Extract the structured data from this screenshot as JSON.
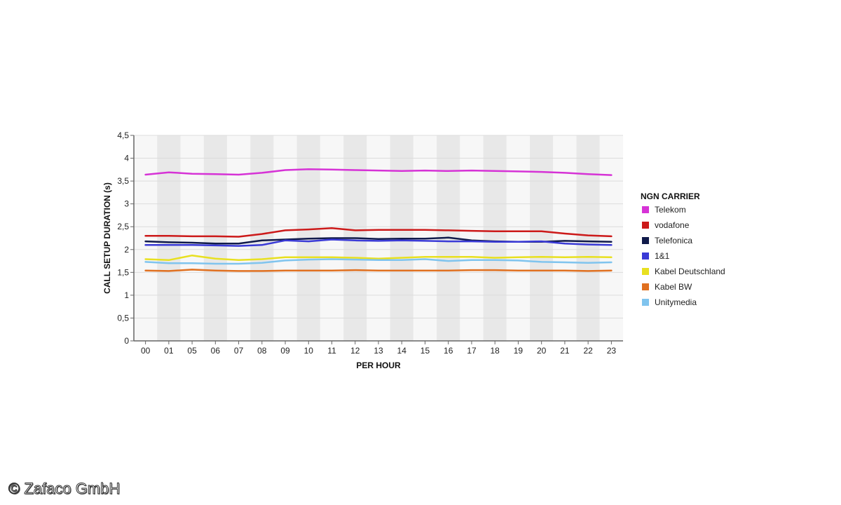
{
  "chart_data": {
    "type": "line",
    "title": "",
    "xlabel": "PER HOUR",
    "ylabel": "CALL SETUP DURATION (s)",
    "ylim": [
      0,
      4.5
    ],
    "yticks": [
      "0",
      "0,5",
      "1",
      "1,5",
      "2",
      "2,5",
      "3",
      "3,5",
      "4",
      "4,5"
    ],
    "grid": "alternating column bands",
    "legend_placement": "right",
    "legend_title": "NGN CARRIER",
    "categories": [
      "00",
      "01",
      "05",
      "06",
      "07",
      "08",
      "09",
      "10",
      "11",
      "12",
      "13",
      "14",
      "15",
      "16",
      "17",
      "18",
      "19",
      "20",
      "21",
      "22",
      "23"
    ],
    "series": [
      {
        "name": "Telekom",
        "color": "#d633d6",
        "values": [
          3.64,
          3.69,
          3.66,
          3.65,
          3.64,
          3.68,
          3.74,
          3.76,
          3.75,
          3.74,
          3.73,
          3.72,
          3.73,
          3.72,
          3.73,
          3.72,
          3.71,
          3.7,
          3.68,
          3.65,
          3.63
        ]
      },
      {
        "name": "vodafone",
        "color": "#cc1a1a",
        "values": [
          2.3,
          2.3,
          2.29,
          2.29,
          2.28,
          2.34,
          2.42,
          2.44,
          2.47,
          2.42,
          2.43,
          2.43,
          2.43,
          2.42,
          2.41,
          2.4,
          2.4,
          2.4,
          2.35,
          2.31,
          2.29
        ]
      },
      {
        "name": "Telefonica",
        "color": "#101a4a",
        "values": [
          2.18,
          2.16,
          2.15,
          2.13,
          2.13,
          2.2,
          2.22,
          2.24,
          2.25,
          2.25,
          2.23,
          2.24,
          2.24,
          2.26,
          2.2,
          2.18,
          2.17,
          2.17,
          2.19,
          2.18,
          2.17
        ]
      },
      {
        "name": "1&1",
        "color": "#3a3ad6",
        "values": [
          2.1,
          2.1,
          2.1,
          2.09,
          2.08,
          2.1,
          2.2,
          2.18,
          2.22,
          2.2,
          2.19,
          2.2,
          2.19,
          2.18,
          2.18,
          2.17,
          2.17,
          2.18,
          2.13,
          2.11,
          2.1
        ]
      },
      {
        "name": "Kabel Deutschland",
        "color": "#e8e020",
        "values": [
          1.79,
          1.77,
          1.87,
          1.8,
          1.77,
          1.79,
          1.83,
          1.83,
          1.83,
          1.82,
          1.8,
          1.82,
          1.84,
          1.84,
          1.84,
          1.82,
          1.83,
          1.84,
          1.83,
          1.84,
          1.83
        ]
      },
      {
        "name": "Kabel BW",
        "color": "#e07020",
        "values": [
          1.54,
          1.53,
          1.56,
          1.54,
          1.53,
          1.53,
          1.54,
          1.54,
          1.54,
          1.55,
          1.54,
          1.54,
          1.54,
          1.54,
          1.55,
          1.55,
          1.54,
          1.54,
          1.54,
          1.53,
          1.54
        ]
      },
      {
        "name": "Unitymedia",
        "color": "#80c4ee",
        "values": [
          1.73,
          1.7,
          1.7,
          1.69,
          1.69,
          1.71,
          1.76,
          1.78,
          1.79,
          1.78,
          1.77,
          1.77,
          1.79,
          1.75,
          1.77,
          1.77,
          1.76,
          1.73,
          1.72,
          1.71,
          1.72
        ]
      }
    ]
  },
  "watermark": "© Zafaco GmbH",
  "colors": {
    "plot_band_light": "#f7f7f7",
    "plot_band_dark": "#e8e8e8",
    "axis": "#666666",
    "gridline": "#dcdcdc"
  }
}
